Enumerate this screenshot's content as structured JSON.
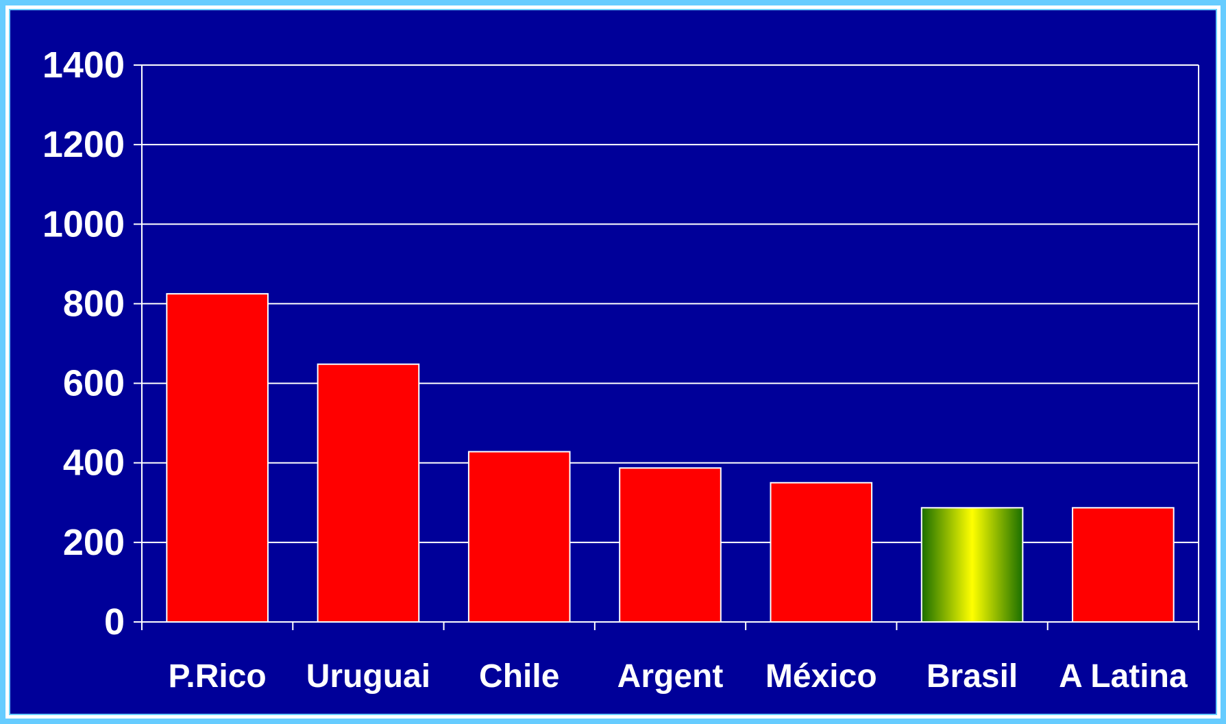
{
  "chart_data": {
    "type": "bar",
    "title": "",
    "xlabel": "",
    "ylabel": "",
    "categories": [
      "P.Rico",
      "Uruguai",
      "Chile",
      "Argent",
      "México",
      "Brasil",
      "A Latina"
    ],
    "values": [
      825,
      648,
      428,
      387,
      350,
      287,
      287
    ],
    "ylim": [
      0,
      1400
    ],
    "yticks": [
      "0",
      "200",
      "400",
      "600",
      "800",
      "1000",
      "1200",
      "1400"
    ],
    "grid": true,
    "legend": "none",
    "colors": {
      "background": "#000099",
      "frame": "#66ccff",
      "bar": "#ff0000",
      "bar_outline": "#ffffff",
      "highlight_bar_center": "#ffff00",
      "highlight_bar_edge": "#1a6e00",
      "text": "#ffffff",
      "grid": "#ffffff"
    },
    "highlight_index": 5
  }
}
